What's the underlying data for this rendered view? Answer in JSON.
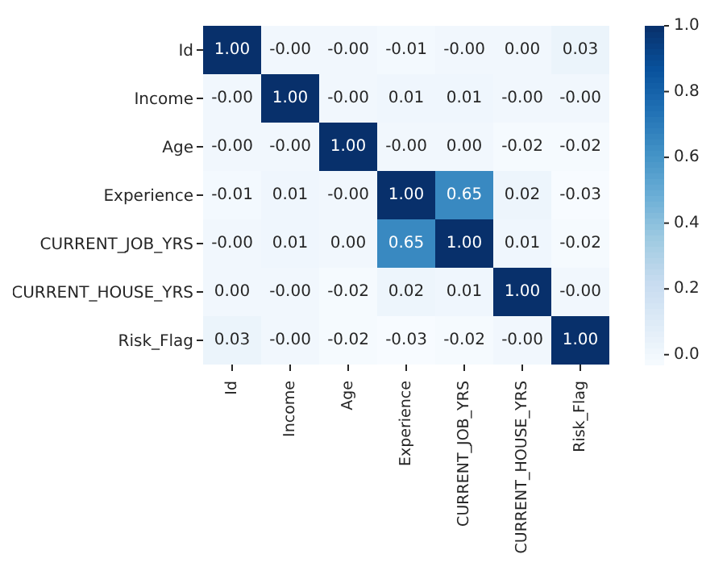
{
  "chart_data": {
    "type": "heatmap",
    "categories": [
      "Id",
      "Income",
      "Age",
      "Experience",
      "CURRENT_JOB_YRS",
      "CURRENT_HOUSE_YRS",
      "Risk_Flag"
    ],
    "y_categories": [
      "Id",
      "Income",
      "Age",
      "Experience",
      "CURRENT_JOB_YRS",
      "CURRENT_HOUSE_YRS",
      "Risk_Flag"
    ],
    "cells": [
      [
        1.0,
        -0.0,
        -0.0,
        -0.01,
        -0.0,
        0.0,
        0.03
      ],
      [
        -0.0,
        1.0,
        -0.0,
        0.01,
        0.01,
        -0.0,
        -0.0
      ],
      [
        -0.0,
        -0.0,
        1.0,
        -0.0,
        0.0,
        -0.02,
        -0.02
      ],
      [
        -0.01,
        0.01,
        -0.0,
        1.0,
        0.65,
        0.02,
        -0.03
      ],
      [
        -0.0,
        0.01,
        0.0,
        0.65,
        1.0,
        0.01,
        -0.02
      ],
      [
        0.0,
        -0.0,
        -0.02,
        0.02,
        0.01,
        1.0,
        -0.0
      ],
      [
        0.03,
        -0.0,
        -0.02,
        -0.03,
        -0.02,
        -0.0,
        1.0
      ]
    ],
    "cell_labels": [
      [
        "1.00",
        "-0.00",
        "-0.00",
        "-0.01",
        "-0.00",
        "0.00",
        "0.03"
      ],
      [
        "-0.00",
        "1.00",
        "-0.00",
        "0.01",
        "0.01",
        "-0.00",
        "-0.00"
      ],
      [
        "-0.00",
        "-0.00",
        "1.00",
        "-0.00",
        "0.00",
        "-0.02",
        "-0.02"
      ],
      [
        "-0.01",
        "0.01",
        "-0.00",
        "1.00",
        "0.65",
        "0.02",
        "-0.03"
      ],
      [
        "-0.00",
        "0.01",
        "0.00",
        "0.65",
        "1.00",
        "0.01",
        "-0.02"
      ],
      [
        "0.00",
        "-0.00",
        "-0.02",
        "0.02",
        "0.01",
        "1.00",
        "-0.00"
      ],
      [
        "0.03",
        "-0.00",
        "-0.02",
        "-0.03",
        "-0.02",
        "-0.00",
        "1.00"
      ]
    ],
    "clim": [
      -0.03,
      1.0
    ],
    "cticks": [
      {
        "value": 0,
        "label": "0.0"
      },
      {
        "value": 0.2,
        "label": "0.2"
      },
      {
        "value": 0.4,
        "label": "0.4"
      },
      {
        "value": 0.6,
        "label": "0.6"
      },
      {
        "value": 0.8,
        "label": "0.8"
      },
      {
        "value": 1.0,
        "label": "1.0"
      }
    ]
  }
}
